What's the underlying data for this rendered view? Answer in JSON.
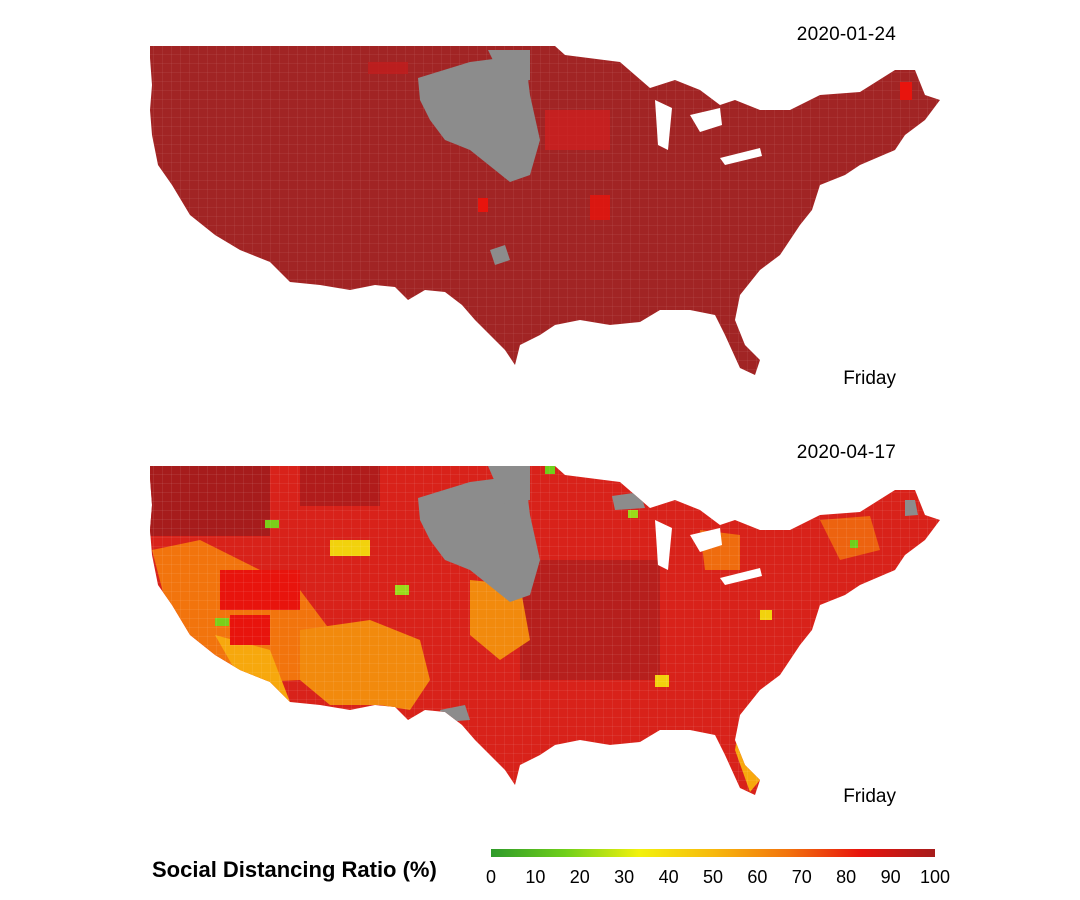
{
  "panels": [
    {
      "date": "2020-01-24",
      "day": "Friday"
    },
    {
      "date": "2020-04-17",
      "day": "Friday"
    }
  ],
  "legend": {
    "title": "Social Distancing Ratio (%)",
    "ticks": [
      "0",
      "10",
      "20",
      "30",
      "40",
      "50",
      "60",
      "70",
      "80",
      "90",
      "100"
    ],
    "gradient": [
      "#2e9a2a",
      "#6fcf1a",
      "#f2f20d",
      "#f7b90d",
      "#f2740d",
      "#e8140d",
      "#a61c1c"
    ],
    "no_data_color": "#8c8c8c"
  }
}
